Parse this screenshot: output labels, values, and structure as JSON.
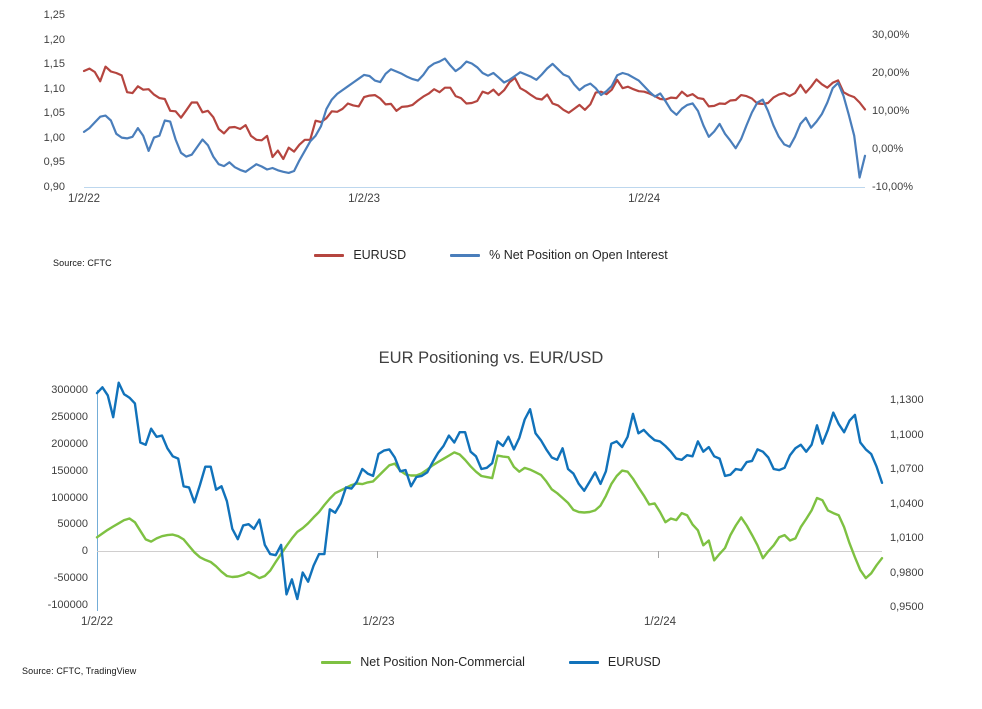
{
  "page": {
    "background": "#ffffff"
  },
  "chart_data": [
    {
      "type": "line",
      "title": "",
      "source": "Source: CFTC",
      "x_tick_labels": [
        "1/2/22",
        "1/2/23",
        "1/2/24"
      ],
      "x_tick_indices": [
        0,
        52,
        104
      ],
      "axes": {
        "left": {
          "tick_labels": [
            "1,25",
            "1,20",
            "1,15",
            "1,10",
            "1,05",
            "1,00",
            "0,95",
            "0,90"
          ],
          "tick_values": [
            1.25,
            1.2,
            1.15,
            1.1,
            1.05,
            1.0,
            0.95,
            0.9
          ],
          "min": 0.9,
          "max": 1.25
        },
        "right": {
          "tick_labels": [
            "30,00%",
            "20,00%",
            "10,00%",
            "0,00%",
            "-10,00%"
          ],
          "tick_values": [
            30,
            20,
            10,
            0,
            -10
          ],
          "min": -10,
          "max": 30
        }
      },
      "legend_position": "bottom-center",
      "grid": "x-axis-line-only",
      "series": [
        {
          "name": "EURUSD",
          "axis": "left",
          "color": "#b5453f",
          "values": [
            1.136,
            1.141,
            1.134,
            1.115,
            1.145,
            1.135,
            1.132,
            1.127,
            1.093,
            1.091,
            1.105,
            1.098,
            1.099,
            1.088,
            1.081,
            1.079,
            1.055,
            1.054,
            1.041,
            1.056,
            1.072,
            1.072,
            1.052,
            1.055,
            1.042,
            1.018,
            1.009,
            1.021,
            1.022,
            1.018,
            1.026,
            1.004,
            0.996,
            0.995,
            1.004,
            0.961,
            0.974,
            0.957,
            0.98,
            0.972,
            0.986,
            0.996,
            0.996,
            1.035,
            1.032,
            1.04,
            1.054,
            1.053,
            1.059,
            1.07,
            1.066,
            1.064,
            1.083,
            1.086,
            1.087,
            1.08,
            1.068,
            1.069,
            1.055,
            1.063,
            1.064,
            1.067,
            1.076,
            1.084,
            1.09,
            1.099,
            1.093,
            1.102,
            1.102,
            1.085,
            1.081,
            1.07,
            1.071,
            1.075,
            1.094,
            1.09,
            1.098,
            1.087,
            1.097,
            1.113,
            1.122,
            1.101,
            1.095,
            1.087,
            1.08,
            1.078,
            1.088,
            1.07,
            1.066,
            1.057,
            1.051,
            1.059,
            1.067,
            1.057,
            1.068,
            1.092,
            1.094,
            1.089,
            1.098,
            1.118,
            1.101,
            1.104,
            1.099,
            1.095,
            1.094,
            1.09,
            1.085,
            1.079,
            1.078,
            1.082,
            1.081,
            1.094,
            1.085,
            1.089,
            1.081,
            1.079,
            1.064,
            1.065,
            1.07,
            1.069,
            1.076,
            1.077,
            1.087,
            1.085,
            1.08,
            1.07,
            1.069,
            1.071,
            1.082,
            1.088,
            1.091,
            1.085,
            1.091,
            1.108,
            1.092,
            1.104,
            1.119,
            1.109,
            1.102,
            1.112,
            1.117,
            1.093,
            1.087,
            1.083,
            1.072,
            1.058
          ]
        },
        {
          "name": "% Net Position on Open Interest",
          "axis": "right",
          "color": "#4a7ebb",
          "values": [
            4.5,
            5.5,
            7.0,
            8.5,
            8.8,
            7.5,
            4.0,
            3.0,
            2.8,
            3.2,
            5.5,
            3.5,
            -0.5,
            3.0,
            3.5,
            7.5,
            7.2,
            2.5,
            -1.0,
            -2.0,
            -1.5,
            0.5,
            2.5,
            1.0,
            -2.0,
            -4.0,
            -4.5,
            -3.5,
            -4.8,
            -5.5,
            -6.0,
            -5.0,
            -4.0,
            -4.6,
            -5.4,
            -5.0,
            -5.6,
            -6.0,
            -6.3,
            -5.8,
            -3.0,
            -0.5,
            2.0,
            3.5,
            6.0,
            10.5,
            13.0,
            14.5,
            15.5,
            16.5,
            17.5,
            18.5,
            19.5,
            19.2,
            18.0,
            17.6,
            19.8,
            21.0,
            20.4,
            19.8,
            19.0,
            18.4,
            18.0,
            19.5,
            21.5,
            22.5,
            23.0,
            23.8,
            22.0,
            20.5,
            21.5,
            23.0,
            22.5,
            21.5,
            20.0,
            19.3,
            20.0,
            18.8,
            17.5,
            18.2,
            19.2,
            20.2,
            19.6,
            19.0,
            18.2,
            19.6,
            21.2,
            22.4,
            21.0,
            19.6,
            19.0,
            17.0,
            15.5,
            16.6,
            17.2,
            16.0,
            14.2,
            15.2,
            16.6,
            19.4,
            20.0,
            19.6,
            18.8,
            18.0,
            16.5,
            15.0,
            13.8,
            14.6,
            12.5,
            10.2,
            9.0,
            10.6,
            11.6,
            12.0,
            10.0,
            6.2,
            3.2,
            4.6,
            6.6,
            4.0,
            2.2,
            0.2,
            2.6,
            6.2,
            9.6,
            12.2,
            13.0,
            10.0,
            6.2,
            3.2,
            1.2,
            0.6,
            3.2,
            6.6,
            8.2,
            5.6,
            7.2,
            9.2,
            12.2,
            16.0,
            17.4,
            14.0,
            9.0,
            3.5,
            -7.5,
            -1.8
          ]
        }
      ]
    },
    {
      "type": "line",
      "title": "EUR Positioning vs. EUR/USD",
      "source": "Source: CFTC, TradingView",
      "x_tick_labels": [
        "1/2/22",
        "1/2/23",
        "1/2/24"
      ],
      "x_tick_indices": [
        0,
        52,
        104
      ],
      "axes": {
        "left": {
          "tick_labels": [
            "300000",
            "250000",
            "200000",
            "150000",
            "100000",
            "50000",
            "0",
            "-50000",
            "-100000"
          ],
          "tick_values": [
            300000,
            250000,
            200000,
            150000,
            100000,
            50000,
            0,
            -50000,
            -100000
          ],
          "min": -100000,
          "max": 300000
        },
        "right": {
          "tick_labels": [
            "1,1300",
            "1,1000",
            "1,0700",
            "1,0400",
            "1,0100",
            "0,9800",
            "0,9500"
          ],
          "tick_values": [
            1.13,
            1.1,
            1.07,
            1.04,
            1.01,
            0.98,
            0.95
          ],
          "min": 0.95,
          "max": 1.13
        }
      },
      "legend_position": "bottom-center",
      "grid": "zero-line-only",
      "series": [
        {
          "name": "Net Position Non-Commercial",
          "axis": "left",
          "color": "#7ec142",
          "values": [
            26000,
            33000,
            40000,
            46000,
            52000,
            58000,
            61000,
            54000,
            38000,
            22000,
            18000,
            24000,
            28000,
            30000,
            31000,
            28000,
            22000,
            10000,
            -2000,
            -11000,
            -16000,
            -20000,
            -28000,
            -38000,
            -46000,
            -48000,
            -47000,
            -44000,
            -39000,
            -44000,
            -50000,
            -46000,
            -36000,
            -20000,
            -5000,
            10000,
            24000,
            36000,
            43000,
            52000,
            63000,
            73000,
            86000,
            98000,
            108000,
            113000,
            118000,
            123000,
            126000,
            125000,
            128000,
            130000,
            140000,
            150000,
            160000,
            163000,
            150000,
            143000,
            141000,
            141000,
            145000,
            152000,
            160000,
            166000,
            172000,
            178000,
            184000,
            180000,
            170000,
            158000,
            148000,
            140000,
            138000,
            136000,
            178000,
            176000,
            175000,
            157000,
            148000,
            155000,
            152000,
            147000,
            142000,
            130000,
            115000,
            108000,
            99000,
            90000,
            77000,
            73000,
            72000,
            73000,
            76000,
            85000,
            103000,
            125000,
            140000,
            150000,
            148000,
            135000,
            119000,
            104000,
            87000,
            89000,
            73000,
            54000,
            61000,
            58000,
            71000,
            67000,
            50000,
            39000,
            11000,
            20000,
            -17000,
            -5000,
            6000,
            30000,
            48000,
            63000,
            48000,
            30000,
            11000,
            -13000,
            0,
            11000,
            26000,
            30000,
            20000,
            24000,
            45000,
            60000,
            76000,
            99000,
            95000,
            76000,
            71000,
            67000,
            45000,
            15000,
            -11000,
            -35000,
            -50000,
            -41000,
            -26000,
            -13000
          ]
        },
        {
          "name": "EURUSD",
          "axis": "right",
          "color": "#1172ba",
          "values": [
            1.136,
            1.141,
            1.134,
            1.115,
            1.145,
            1.135,
            1.132,
            1.127,
            1.093,
            1.091,
            1.105,
            1.098,
            1.099,
            1.088,
            1.081,
            1.079,
            1.055,
            1.054,
            1.041,
            1.056,
            1.072,
            1.072,
            1.052,
            1.055,
            1.042,
            1.018,
            1.009,
            1.021,
            1.022,
            1.018,
            1.026,
            1.004,
            0.996,
            0.995,
            1.004,
            0.961,
            0.974,
            0.957,
            0.98,
            0.972,
            0.986,
            0.996,
            0.996,
            1.035,
            1.032,
            1.04,
            1.054,
            1.053,
            1.059,
            1.07,
            1.066,
            1.064,
            1.083,
            1.086,
            1.087,
            1.08,
            1.068,
            1.069,
            1.055,
            1.063,
            1.064,
            1.067,
            1.076,
            1.084,
            1.09,
            1.099,
            1.093,
            1.102,
            1.102,
            1.085,
            1.081,
            1.07,
            1.071,
            1.075,
            1.094,
            1.09,
            1.098,
            1.087,
            1.097,
            1.113,
            1.122,
            1.101,
            1.095,
            1.087,
            1.08,
            1.078,
            1.088,
            1.07,
            1.066,
            1.057,
            1.051,
            1.059,
            1.067,
            1.057,
            1.068,
            1.092,
            1.094,
            1.089,
            1.098,
            1.118,
            1.101,
            1.104,
            1.099,
            1.095,
            1.094,
            1.09,
            1.085,
            1.079,
            1.078,
            1.082,
            1.081,
            1.094,
            1.085,
            1.089,
            1.081,
            1.079,
            1.064,
            1.065,
            1.07,
            1.069,
            1.076,
            1.077,
            1.087,
            1.085,
            1.08,
            1.07,
            1.069,
            1.071,
            1.082,
            1.088,
            1.091,
            1.085,
            1.091,
            1.108,
            1.092,
            1.104,
            1.119,
            1.109,
            1.102,
            1.112,
            1.117,
            1.093,
            1.087,
            1.083,
            1.072,
            1.058
          ]
        }
      ]
    }
  ]
}
